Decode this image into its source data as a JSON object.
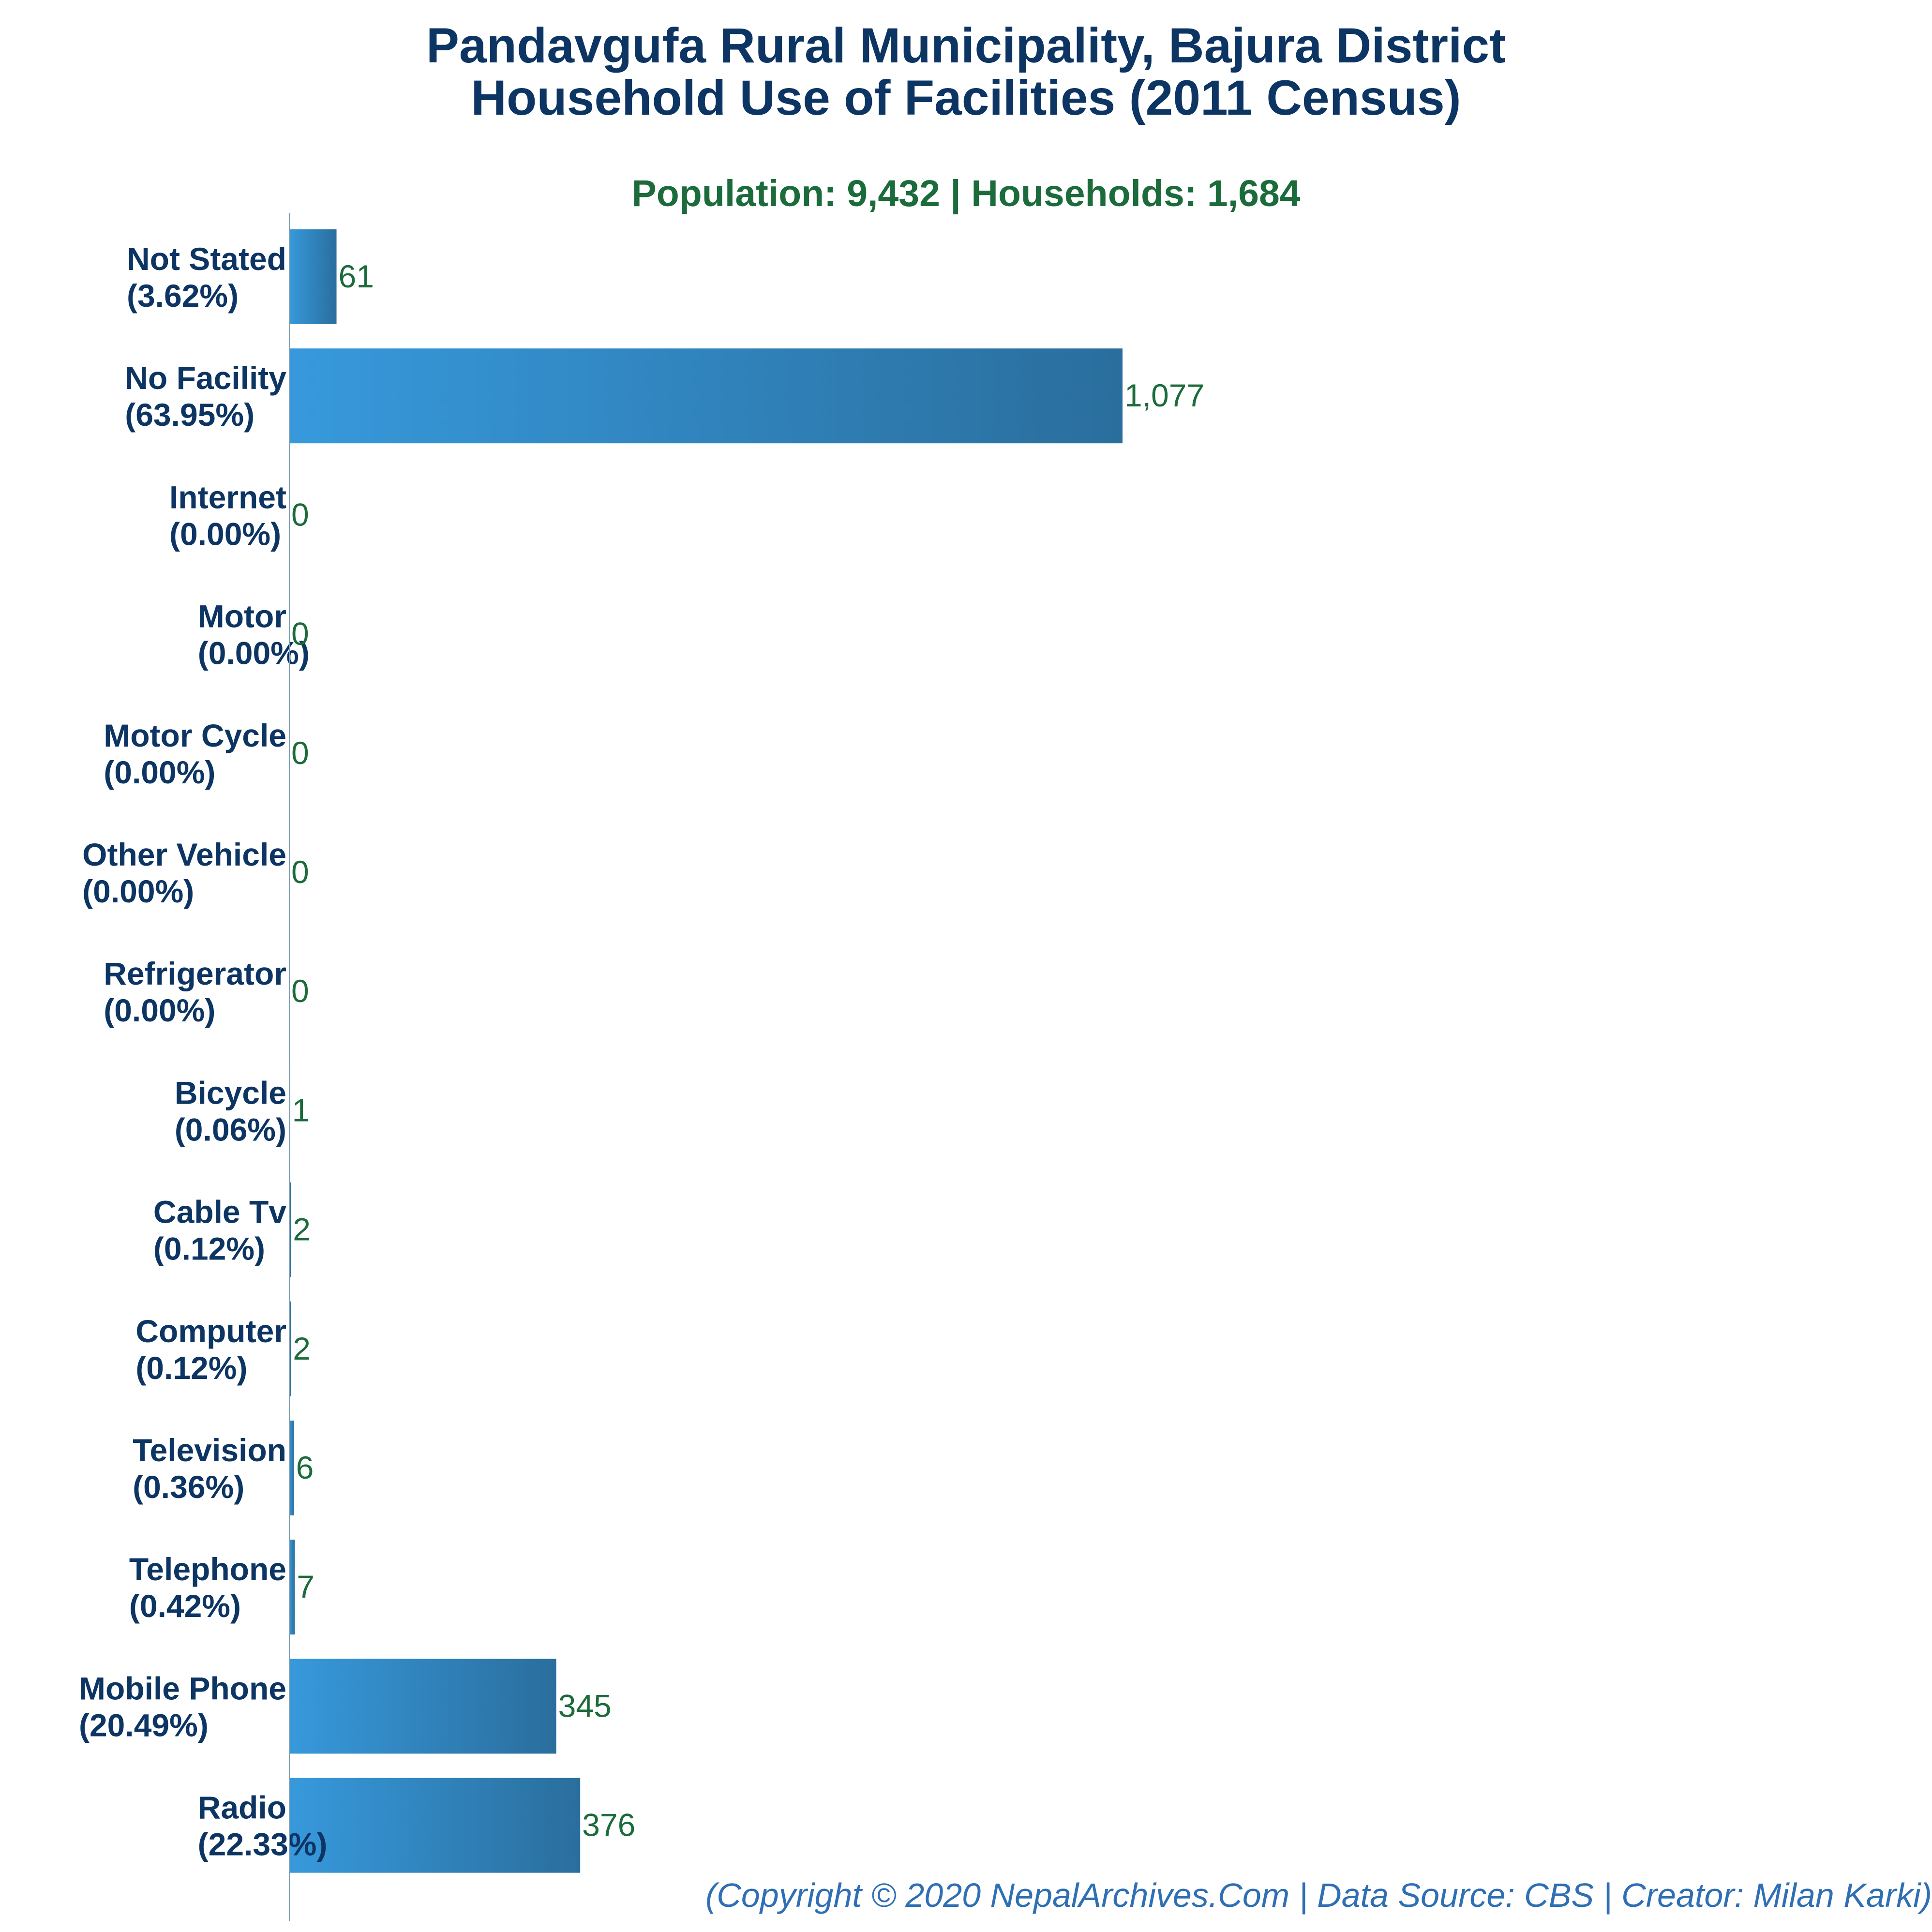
{
  "title_line1": "Pandavgufa Rural Municipality, Bajura District",
  "title_line2": "Household Use of Facilities (2011 Census)",
  "subtitle": "Population: 9,432 | Households: 1,684",
  "footer": "(Copyright © 2020 NepalArchives.Com | Data Source: CBS | Creator: Milan Karki)",
  "colors": {
    "bar_light": "#3799dc",
    "bar_dark": "#2a6e9d",
    "title": "#0d3563",
    "subtitle": "#1b6b3b",
    "value_label": "#1b6b3b",
    "footer": "#2f6fb4",
    "axis": "#7f9fb3"
  },
  "chart_data": {
    "type": "bar",
    "orientation": "horizontal",
    "title": "Pandavgufa Rural Municipality, Bajura District Household Use of Facilities (2011 Census)",
    "subtitle": "Population: 9,432 | Households: 1,684",
    "categories": [
      "Not Stated",
      "No Facility",
      "Internet",
      "Motor",
      "Motor Cycle",
      "Other Vehicle",
      "Refrigerator",
      "Bicycle",
      "Cable Tv",
      "Computer",
      "Television",
      "Telephone",
      "Mobile Phone",
      "Radio"
    ],
    "percentages": [
      "(3.62%)",
      "(63.95%)",
      "(0.00%)",
      "(0.00%)",
      "(0.00%)",
      "(0.00%)",
      "(0.00%)",
      "(0.06%)",
      "(0.12%)",
      "(0.12%)",
      "(0.36%)",
      "(0.42%)",
      "(20.49%)",
      "(22.33%)"
    ],
    "values": [
      61,
      1077,
      0,
      0,
      0,
      0,
      0,
      1,
      2,
      2,
      6,
      7,
      345,
      376
    ],
    "value_labels": [
      "61",
      "1,077",
      "0",
      "0",
      "0",
      "0",
      "0",
      "1",
      "2",
      "2",
      "6",
      "7",
      "345",
      "376"
    ],
    "xlim": [
      0,
      2510
    ],
    "grid": false,
    "legend": "none"
  }
}
